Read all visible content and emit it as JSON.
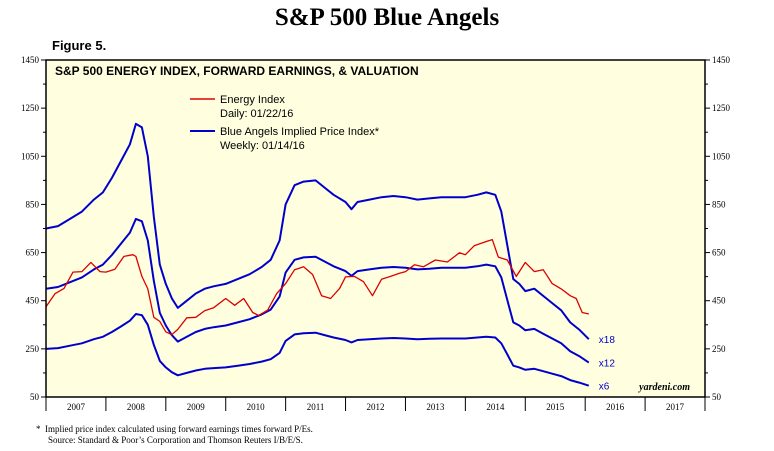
{
  "page": {
    "title": "S&P 500 Blue Angels",
    "figure_label": "Figure 5."
  },
  "footnotes": {
    "line1": "Implied price index calculated using forward earnings times forward P/Es.",
    "line1_marker": "*",
    "line2": "Source: Standard & Poor’s Corporation and Thomson Reuters I/B/E/S."
  },
  "colors": {
    "plot_bg": "#ffffe0",
    "energy": "#dd0000",
    "angels": "#0000cc",
    "border": "#000000"
  },
  "chart_data": {
    "type": "line",
    "title": "S&P 500 ENERGY INDEX, FORWARD EARNINGS, & VALUATION",
    "xlabel": "",
    "ylabel": "",
    "ylim": [
      50,
      1450
    ],
    "y_ticks": [
      50,
      250,
      450,
      650,
      850,
      1050,
      1250,
      1450
    ],
    "y_tick_labels": [
      "50",
      "250",
      "450",
      "650",
      "850",
      "1050",
      "1250",
      "1450"
    ],
    "xlim": [
      2007,
      2018
    ],
    "x_tick_labels": [
      "2007",
      "2008",
      "2009",
      "2010",
      "2011",
      "2012",
      "2013",
      "2014",
      "2015",
      "2016",
      "2017"
    ],
    "watermark": "yardeni.com",
    "legend": [
      {
        "name": "Energy Index",
        "sub": "Daily: 01/22/16",
        "color": "#dd0000"
      },
      {
        "name": "Blue Angels Implied Price Index*",
        "sub": "Weekly: 01/14/16",
        "color": "#0000cc"
      }
    ],
    "series": [
      {
        "name": "Energy Index",
        "color": "#dd0000",
        "points": [
          [
            2007.0,
            425
          ],
          [
            2007.15,
            470
          ],
          [
            2007.3,
            510
          ],
          [
            2007.45,
            560
          ],
          [
            2007.6,
            580
          ],
          [
            2007.75,
            600
          ],
          [
            2007.9,
            580
          ],
          [
            2008.0,
            560
          ],
          [
            2008.15,
            590
          ],
          [
            2008.3,
            625
          ],
          [
            2008.45,
            650
          ],
          [
            2008.5,
            625
          ],
          [
            2008.6,
            560
          ],
          [
            2008.7,
            490
          ],
          [
            2008.8,
            390
          ],
          [
            2008.9,
            355
          ],
          [
            2009.0,
            330
          ],
          [
            2009.1,
            300
          ],
          [
            2009.2,
            340
          ],
          [
            2009.35,
            370
          ],
          [
            2009.5,
            390
          ],
          [
            2009.65,
            400
          ],
          [
            2009.8,
            430
          ],
          [
            2010.0,
            450
          ],
          [
            2010.15,
            440
          ],
          [
            2010.3,
            450
          ],
          [
            2010.45,
            410
          ],
          [
            2010.55,
            380
          ],
          [
            2010.7,
            420
          ],
          [
            2010.85,
            470
          ],
          [
            2011.0,
            530
          ],
          [
            2011.15,
            570
          ],
          [
            2011.3,
            600
          ],
          [
            2011.45,
            550
          ],
          [
            2011.6,
            480
          ],
          [
            2011.75,
            450
          ],
          [
            2011.9,
            510
          ],
          [
            2012.0,
            540
          ],
          [
            2012.15,
            560
          ],
          [
            2012.3,
            520
          ],
          [
            2012.45,
            480
          ],
          [
            2012.6,
            530
          ],
          [
            2012.75,
            560
          ],
          [
            2012.9,
            555
          ],
          [
            2013.0,
            580
          ],
          [
            2013.15,
            590
          ],
          [
            2013.3,
            600
          ],
          [
            2013.5,
            610
          ],
          [
            2013.7,
            620
          ],
          [
            2013.9,
            640
          ],
          [
            2014.0,
            650
          ],
          [
            2014.15,
            670
          ],
          [
            2014.35,
            705
          ],
          [
            2014.45,
            695
          ],
          [
            2014.55,
            640
          ],
          [
            2014.7,
            610
          ],
          [
            2014.85,
            560
          ],
          [
            2015.0,
            600
          ],
          [
            2015.15,
            580
          ],
          [
            2015.3,
            570
          ],
          [
            2015.45,
            530
          ],
          [
            2015.6,
            490
          ],
          [
            2015.75,
            480
          ],
          [
            2015.85,
            450
          ],
          [
            2015.95,
            410
          ],
          [
            2016.06,
            395
          ]
        ]
      },
      {
        "name": "Blue Angels Implied Price Index x18",
        "label": "x18",
        "color": "#0000cc",
        "points": [
          [
            2007.0,
            750
          ],
          [
            2007.2,
            760
          ],
          [
            2007.4,
            790
          ],
          [
            2007.6,
            820
          ],
          [
            2007.8,
            870
          ],
          [
            2007.95,
            900
          ],
          [
            2008.1,
            960
          ],
          [
            2008.25,
            1030
          ],
          [
            2008.4,
            1100
          ],
          [
            2008.5,
            1185
          ],
          [
            2008.6,
            1170
          ],
          [
            2008.7,
            1050
          ],
          [
            2008.8,
            800
          ],
          [
            2008.9,
            600
          ],
          [
            2009.0,
            520
          ],
          [
            2009.1,
            460
          ],
          [
            2009.2,
            420
          ],
          [
            2009.35,
            450
          ],
          [
            2009.5,
            480
          ],
          [
            2009.65,
            500
          ],
          [
            2009.8,
            510
          ],
          [
            2010.0,
            520
          ],
          [
            2010.2,
            540
          ],
          [
            2010.4,
            560
          ],
          [
            2010.6,
            590
          ],
          [
            2010.75,
            620
          ],
          [
            2010.9,
            700
          ],
          [
            2011.0,
            850
          ],
          [
            2011.15,
            930
          ],
          [
            2011.3,
            945
          ],
          [
            2011.5,
            950
          ],
          [
            2011.65,
            920
          ],
          [
            2011.8,
            890
          ],
          [
            2012.0,
            860
          ],
          [
            2012.1,
            830
          ],
          [
            2012.2,
            860
          ],
          [
            2012.4,
            870
          ],
          [
            2012.6,
            880
          ],
          [
            2012.8,
            885
          ],
          [
            2013.0,
            880
          ],
          [
            2013.2,
            870
          ],
          [
            2013.4,
            875
          ],
          [
            2013.6,
            880
          ],
          [
            2013.8,
            880
          ],
          [
            2014.0,
            880
          ],
          [
            2014.2,
            890
          ],
          [
            2014.35,
            900
          ],
          [
            2014.5,
            890
          ],
          [
            2014.6,
            820
          ],
          [
            2014.7,
            680
          ],
          [
            2014.8,
            540
          ],
          [
            2014.9,
            520
          ],
          [
            2015.0,
            490
          ],
          [
            2015.15,
            500
          ],
          [
            2015.3,
            470
          ],
          [
            2015.45,
            440
          ],
          [
            2015.6,
            410
          ],
          [
            2015.75,
            360
          ],
          [
            2015.9,
            330
          ],
          [
            2016.06,
            290
          ]
        ]
      },
      {
        "name": "Blue Angels Implied Price Index x12",
        "label": "x12",
        "color": "#0000cc",
        "points": [
          [
            2007.0,
            500
          ],
          [
            2007.2,
            507
          ],
          [
            2007.4,
            527
          ],
          [
            2007.6,
            547
          ],
          [
            2007.8,
            580
          ],
          [
            2007.95,
            600
          ],
          [
            2008.1,
            640
          ],
          [
            2008.25,
            687
          ],
          [
            2008.4,
            733
          ],
          [
            2008.5,
            790
          ],
          [
            2008.6,
            780
          ],
          [
            2008.7,
            700
          ],
          [
            2008.8,
            533
          ],
          [
            2008.9,
            400
          ],
          [
            2009.0,
            347
          ],
          [
            2009.1,
            307
          ],
          [
            2009.2,
            280
          ],
          [
            2009.35,
            300
          ],
          [
            2009.5,
            320
          ],
          [
            2009.65,
            333
          ],
          [
            2009.8,
            340
          ],
          [
            2010.0,
            347
          ],
          [
            2010.2,
            360
          ],
          [
            2010.4,
            373
          ],
          [
            2010.6,
            393
          ],
          [
            2010.75,
            413
          ],
          [
            2010.9,
            467
          ],
          [
            2011.0,
            567
          ],
          [
            2011.15,
            620
          ],
          [
            2011.3,
            630
          ],
          [
            2011.5,
            633
          ],
          [
            2011.65,
            613
          ],
          [
            2011.8,
            593
          ],
          [
            2012.0,
            573
          ],
          [
            2012.1,
            553
          ],
          [
            2012.2,
            573
          ],
          [
            2012.4,
            580
          ],
          [
            2012.6,
            587
          ],
          [
            2012.8,
            590
          ],
          [
            2013.0,
            587
          ],
          [
            2013.2,
            580
          ],
          [
            2013.4,
            583
          ],
          [
            2013.6,
            587
          ],
          [
            2013.8,
            587
          ],
          [
            2014.0,
            587
          ],
          [
            2014.2,
            593
          ],
          [
            2014.35,
            600
          ],
          [
            2014.5,
            593
          ],
          [
            2014.6,
            547
          ],
          [
            2014.7,
            453
          ],
          [
            2014.8,
            360
          ],
          [
            2014.9,
            347
          ],
          [
            2015.0,
            327
          ],
          [
            2015.15,
            333
          ],
          [
            2015.3,
            313
          ],
          [
            2015.45,
            293
          ],
          [
            2015.6,
            273
          ],
          [
            2015.75,
            240
          ],
          [
            2015.9,
            220
          ],
          [
            2016.06,
            193
          ]
        ]
      },
      {
        "name": "Blue Angels Implied Price Index x6",
        "label": "x6",
        "color": "#0000cc",
        "points": [
          [
            2007.0,
            250
          ],
          [
            2007.2,
            253
          ],
          [
            2007.4,
            263
          ],
          [
            2007.6,
            273
          ],
          [
            2007.8,
            290
          ],
          [
            2007.95,
            300
          ],
          [
            2008.1,
            320
          ],
          [
            2008.25,
            343
          ],
          [
            2008.4,
            367
          ],
          [
            2008.5,
            395
          ],
          [
            2008.6,
            390
          ],
          [
            2008.7,
            350
          ],
          [
            2008.8,
            267
          ],
          [
            2008.9,
            200
          ],
          [
            2009.0,
            173
          ],
          [
            2009.1,
            153
          ],
          [
            2009.2,
            140
          ],
          [
            2009.35,
            150
          ],
          [
            2009.5,
            160
          ],
          [
            2009.65,
            167
          ],
          [
            2009.8,
            170
          ],
          [
            2010.0,
            173
          ],
          [
            2010.2,
            180
          ],
          [
            2010.4,
            187
          ],
          [
            2010.6,
            197
          ],
          [
            2010.75,
            207
          ],
          [
            2010.9,
            233
          ],
          [
            2011.0,
            283
          ],
          [
            2011.15,
            310
          ],
          [
            2011.3,
            315
          ],
          [
            2011.5,
            317
          ],
          [
            2011.65,
            307
          ],
          [
            2011.8,
            297
          ],
          [
            2012.0,
            287
          ],
          [
            2012.1,
            277
          ],
          [
            2012.2,
            287
          ],
          [
            2012.4,
            290
          ],
          [
            2012.6,
            293
          ],
          [
            2012.8,
            295
          ],
          [
            2013.0,
            293
          ],
          [
            2013.2,
            290
          ],
          [
            2013.4,
            292
          ],
          [
            2013.6,
            293
          ],
          [
            2013.8,
            293
          ],
          [
            2014.0,
            293
          ],
          [
            2014.2,
            297
          ],
          [
            2014.35,
            300
          ],
          [
            2014.5,
            297
          ],
          [
            2014.6,
            273
          ],
          [
            2014.7,
            227
          ],
          [
            2014.8,
            180
          ],
          [
            2014.9,
            173
          ],
          [
            2015.0,
            163
          ],
          [
            2015.15,
            167
          ],
          [
            2015.3,
            157
          ],
          [
            2015.45,
            147
          ],
          [
            2015.6,
            137
          ],
          [
            2015.75,
            120
          ],
          [
            2015.9,
            110
          ],
          [
            2016.06,
            97
          ]
        ]
      }
    ]
  }
}
